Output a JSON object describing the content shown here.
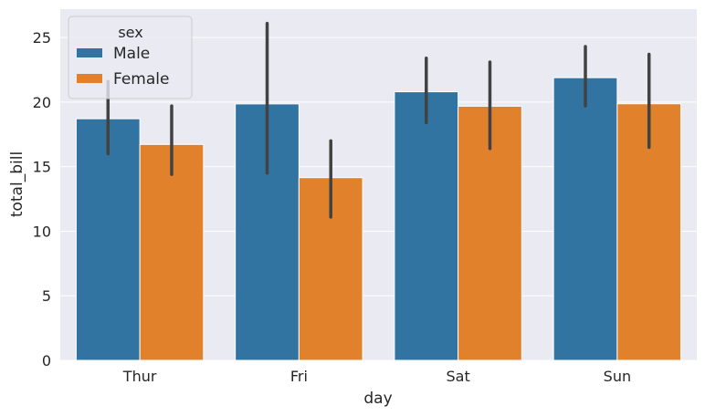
{
  "chart_data": {
    "type": "bar",
    "title": "",
    "xlabel": "day",
    "ylabel": "total_bill",
    "categories": [
      "Thur",
      "Fri",
      "Sat",
      "Sun"
    ],
    "ylim": [
      0,
      27.2
    ],
    "yticks": [
      0,
      5,
      10,
      15,
      20,
      25
    ],
    "grid": true,
    "legend": {
      "title": "sex",
      "placement": "top-left"
    },
    "series": [
      {
        "name": "Male",
        "color": "#3274a1",
        "values": [
          18.71,
          19.86,
          20.8,
          21.89
        ],
        "ci_low": [
          16.0,
          14.5,
          18.4,
          19.7
        ],
        "ci_high": [
          21.6,
          26.1,
          23.4,
          24.3
        ]
      },
      {
        "name": "Female",
        "color": "#e1812c",
        "values": [
          16.72,
          14.15,
          19.68,
          19.87
        ],
        "ci_low": [
          14.4,
          11.1,
          16.4,
          16.5
        ],
        "ci_high": [
          19.7,
          17.0,
          23.1,
          23.7
        ]
      }
    ]
  }
}
